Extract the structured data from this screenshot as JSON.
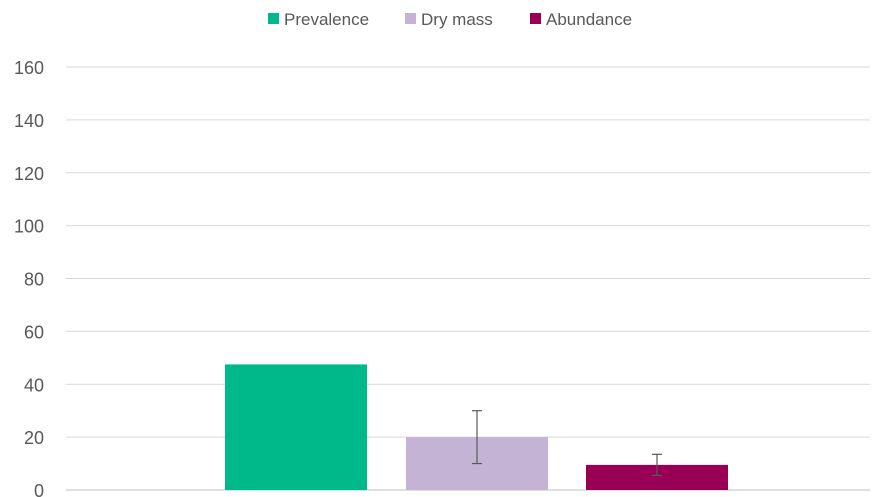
{
  "chart_data": {
    "type": "bar",
    "series": [
      {
        "name": "Prevalence",
        "value": 47.5,
        "color": "#00B98A",
        "error": null
      },
      {
        "name": "Dry mass",
        "value": 20,
        "color": "#C5B3D6",
        "error": [
          10,
          30
        ]
      },
      {
        "name": "Abundance",
        "value": 9.5,
        "color": "#990055",
        "error": [
          5.5,
          13.5
        ]
      }
    ],
    "ylim": [
      0,
      160
    ],
    "yticks": [
      "0",
      "20",
      "40",
      "60",
      "80",
      "100",
      "120",
      "140",
      "160"
    ],
    "grid": true,
    "legend": "top"
  }
}
